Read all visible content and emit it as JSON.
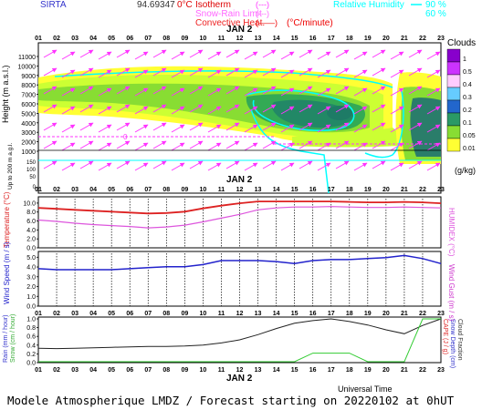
{
  "header": {
    "station": "SIRTA",
    "coords": "94.69347",
    "legend": [
      {
        "label": "Isotherm",
        "prefix": "0°C",
        "sample": "(---)",
        "color": "#ff33ff"
      },
      {
        "label": "Snow-Rain Limit",
        "sample": "(---)",
        "color": "#ff66ff"
      },
      {
        "label": "Convective Heat.",
        "sample": "(——)",
        "unit": "(°C/minute)",
        "color": "#ff0000"
      }
    ],
    "humidity_legend": {
      "label": "Relative Humidity",
      "values": [
        "90 %",
        "60 %"
      ],
      "color": "#00ffff"
    }
  },
  "hours": [
    "01",
    "02",
    "03",
    "04",
    "05",
    "06",
    "07",
    "08",
    "09",
    "10",
    "11",
    "12",
    "13",
    "14",
    "15",
    "16",
    "17",
    "18",
    "19",
    "20",
    "21",
    "22",
    "23"
  ],
  "date_label": "JAN  2",
  "xlabel": "Universal Time",
  "footer": "Modele Atmospherique LMDZ / Forecast starting on 20220102 at 0hUT",
  "colors": {
    "temp": "#dd2222",
    "humidex": "#dd55dd",
    "wind": "#2222cc",
    "gust": "#cc33cc",
    "capc": "#222222",
    "snow": "#33cc33",
    "rain": "#3333cc"
  },
  "chart_data": [
    {
      "type": "heatmap",
      "title": "Clouds",
      "ylabel": "Height (m a.s.l.)",
      "ylabel2": "Up to 200 m a.g.l.",
      "yticks": [
        11000,
        10000,
        9000,
        8000,
        7000,
        6000,
        5000,
        4000,
        3000,
        2000,
        1000
      ],
      "lower_ticks": [
        150,
        100,
        50,
        0
      ],
      "colorbar": {
        "title": "Clouds",
        "unit": "(g/kg)",
        "levels": [
          "1",
          "0.5",
          "0.4",
          "0.3",
          "0.2",
          "0.1",
          "0.05",
          "0.01"
        ]
      },
      "isotherm_label": "0"
    },
    {
      "type": "line",
      "ylabel": "Temperature (°C)",
      "ylabel_right": "HUMIDEX (°C)",
      "yticks": [
        10.0,
        8.0,
        6.0,
        4.0,
        2.0,
        0.0
      ],
      "ylim": [
        0,
        11
      ],
      "x": [
        1,
        2,
        3,
        4,
        5,
        6,
        7,
        8,
        9,
        10,
        11,
        12,
        13,
        14,
        15,
        16,
        17,
        18,
        19,
        20,
        21,
        22,
        23
      ],
      "series": [
        {
          "values": [
            8.6,
            8.4,
            8.2,
            8.0,
            7.8,
            7.6,
            7.4,
            7.5,
            7.8,
            8.5,
            9.1,
            9.6,
            10.0,
            10.0,
            10.0,
            10.0,
            10.0,
            9.9,
            9.8,
            9.8,
            9.9,
            9.8,
            9.6
          ]
        },
        {
          "values": [
            6.0,
            5.7,
            5.3,
            5.0,
            4.8,
            4.6,
            4.3,
            4.5,
            4.9,
            5.6,
            6.4,
            7.2,
            8.2,
            8.6,
            8.8,
            8.8,
            8.9,
            8.8,
            8.7,
            8.7,
            8.8,
            8.7,
            8.6
          ]
        }
      ]
    },
    {
      "type": "line",
      "ylabel": "Wind Speed (m / s)",
      "ylabel_right": "Wind Gust (m / s)",
      "yticks": [
        5.0,
        4.0,
        3.0,
        2.0,
        1.0,
        0.0
      ],
      "ylim": [
        0,
        5.4
      ],
      "x": [
        1,
        2,
        3,
        4,
        5,
        6,
        7,
        8,
        9,
        10,
        11,
        12,
        13,
        14,
        15,
        16,
        17,
        18,
        19,
        20,
        21,
        22,
        23
      ],
      "series": [
        {
          "values": [
            3.7,
            3.6,
            3.6,
            3.6,
            3.6,
            3.7,
            3.8,
            3.9,
            3.9,
            4.1,
            4.5,
            4.5,
            4.5,
            4.4,
            4.2,
            4.5,
            4.6,
            4.6,
            4.7,
            4.8,
            5.0,
            4.7,
            4.2
          ]
        }
      ]
    },
    {
      "type": "line",
      "ylabel": "Rain (mm / hour)",
      "ylabel2": "Snow (cm / hour)",
      "ylabel_right": "CAPE (J / g)",
      "ylabel_right2": "Snow Depth (cm)",
      "ylabel_right3": "Cloud Fraction",
      "yticks": [
        1.0,
        0.8,
        0.6,
        0.4,
        0.2,
        0.0
      ],
      "ylim": [
        0,
        1.0
      ],
      "x": [
        1,
        2,
        3,
        4,
        5,
        6,
        7,
        8,
        9,
        10,
        11,
        12,
        13,
        14,
        15,
        16,
        17,
        18,
        19,
        20,
        21,
        22,
        23
      ],
      "series": [
        {
          "values": [
            0.33,
            0.32,
            0.33,
            0.34,
            0.35,
            0.36,
            0.37,
            0.37,
            0.38,
            0.4,
            0.45,
            0.52,
            0.64,
            0.78,
            0.9,
            0.96,
            1.0,
            0.94,
            0.86,
            0.75,
            0.66,
            0.85,
            1.0
          ]
        },
        {
          "values": [
            0,
            0,
            0,
            0,
            0,
            0,
            0,
            0,
            0,
            0,
            0,
            0,
            0,
            0,
            0,
            0.2,
            0.2,
            0.2,
            0,
            0,
            0,
            1.0,
            1.0
          ]
        }
      ]
    }
  ]
}
